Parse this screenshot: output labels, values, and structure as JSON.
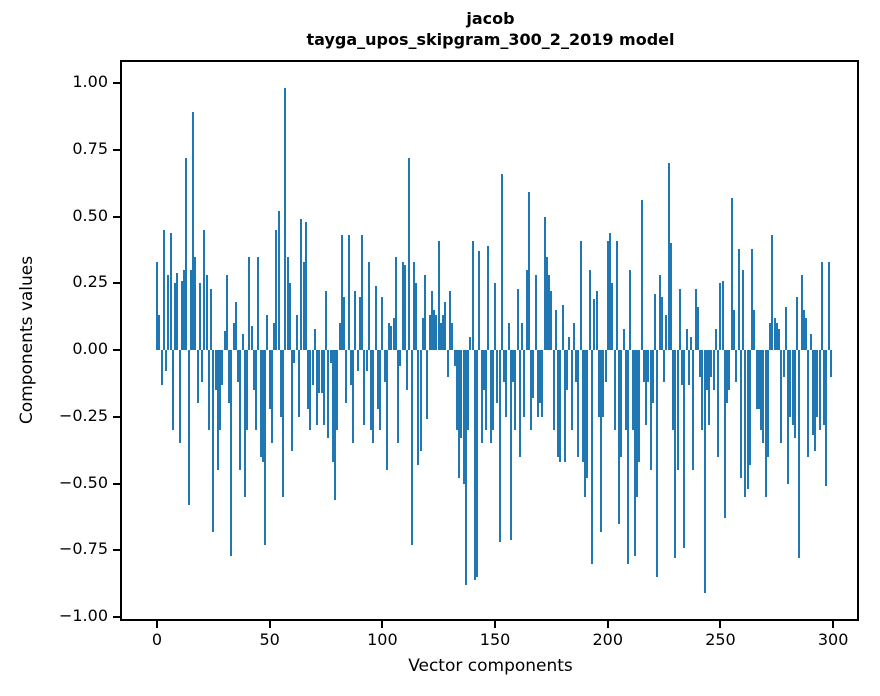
{
  "figure": {
    "title_line1": "jacob",
    "title_line2": "tayga_upos_skipgram_300_2_2019 model",
    "background": "#ffffff"
  },
  "chart_data": {
    "type": "bar",
    "title": "jacob — tayga_upos_skipgram_300_2_2019 model",
    "xlabel": "Vector components",
    "ylabel": "Components values",
    "bar_color": "#1f77b4",
    "axis_color": "#000000",
    "grid": false,
    "legend_position": "none",
    "xlim": [
      -15.5,
      311
    ],
    "ylim": [
      -1.0,
      1.08
    ],
    "x_ticks": [
      0,
      50,
      100,
      150,
      200,
      250,
      300
    ],
    "y_ticks": [
      1.0,
      0.75,
      0.5,
      0.25,
      0.0,
      -0.25,
      -0.5,
      -0.75,
      -1.0
    ],
    "y_tick_labels": [
      "1.00",
      "0.75",
      "0.50",
      "0.25",
      "0.00",
      "−0.25",
      "−0.50",
      "−0.75",
      "−1.00"
    ],
    "n_components": 300,
    "values": [
      0.33,
      0.13,
      -0.13,
      0.45,
      -0.08,
      0.28,
      0.44,
      -0.3,
      0.25,
      0.29,
      -0.35,
      0.26,
      0.3,
      0.72,
      -0.58,
      0.3,
      0.89,
      0.35,
      -0.2,
      0.25,
      -0.12,
      0.45,
      0.28,
      -0.3,
      0.23,
      -0.68,
      -0.15,
      -0.45,
      -0.3,
      -0.13,
      0.07,
      0.28,
      -0.2,
      -0.77,
      0.1,
      0.18,
      -0.12,
      -0.45,
      0.06,
      -0.55,
      -0.3,
      0.35,
      0.09,
      -0.15,
      -0.3,
      0.35,
      -0.4,
      -0.42,
      -0.73,
      0.13,
      -0.22,
      -0.35,
      0.1,
      0.45,
      0.52,
      -0.25,
      -0.55,
      0.98,
      0.35,
      0.25,
      -0.38,
      -0.05,
      0.13,
      -0.25,
      0.49,
      0.33,
      0.48,
      -0.22,
      -0.3,
      -0.13,
      0.08,
      -0.28,
      -0.16,
      -0.16,
      -0.28,
      0.22,
      -0.33,
      -0.05,
      -0.42,
      -0.56,
      -0.3,
      0.1,
      0.43,
      0.2,
      -0.2,
      0.43,
      -0.13,
      -0.35,
      0.22,
      -0.08,
      0.2,
      0.43,
      -0.28,
      -0.08,
      0.33,
      -0.3,
      -0.35,
      0.24,
      -0.22,
      -0.3,
      0.2,
      -0.12,
      -0.45,
      0.1,
      0.09,
      0.12,
      0.35,
      -0.35,
      -0.06,
      0.33,
      0.32,
      -0.15,
      0.72,
      -0.73,
      0.33,
      0.25,
      -0.43,
      -0.38,
      0.12,
      0.28,
      -0.26,
      0.13,
      0.22,
      0.15,
      0.13,
      0.41,
      0.1,
      0.13,
      0.18,
      -0.1,
      0.22,
      0.1,
      -0.06,
      -0.3,
      -0.48,
      -0.33,
      -0.5,
      -0.88,
      -0.3,
      0.05,
      0.41,
      -0.86,
      -0.85,
      0.37,
      -0.35,
      -0.15,
      -0.3,
      0.39,
      -0.35,
      -0.3,
      0.25,
      -0.2,
      -0.72,
      0.66,
      -0.12,
      -0.25,
      0.1,
      -0.71,
      -0.12,
      -0.3,
      0.23,
      -0.4,
      0.1,
      -0.25,
      0.3,
      0.59,
      -0.3,
      -0.18,
      0.28,
      -0.25,
      -0.2,
      -0.25,
      0.5,
      0.35,
      0.28,
      0.22,
      -0.3,
      0.15,
      -0.4,
      -0.42,
      0.17,
      -0.42,
      -0.15,
      0.05,
      -0.3,
      0.1,
      -0.12,
      -0.4,
      0.41,
      -0.42,
      -0.55,
      -0.48,
      0.3,
      -0.8,
      0.19,
      0.22,
      -0.25,
      -0.68,
      -0.25,
      -0.12,
      0.41,
      0.44,
      0.25,
      -0.3,
      0.41,
      -0.65,
      -0.4,
      0.08,
      -0.3,
      -0.8,
      0.3,
      -0.3,
      -0.77,
      -0.55,
      -0.42,
      0.56,
      -0.12,
      -0.28,
      -0.12,
      -0.45,
      -0.2,
      0.21,
      -0.85,
      0.28,
      0.2,
      -0.12,
      0.13,
      0.7,
      0.4,
      -0.3,
      -0.78,
      -0.45,
      0.23,
      -0.13,
      -0.74,
      0.08,
      -0.13,
      0.05,
      -0.45,
      0.23,
      0.16,
      -0.1,
      -0.3,
      -0.91,
      -0.15,
      -0.28,
      -0.1,
      -0.15,
      0.08,
      -0.4,
      0.25,
      0.26,
      -0.63,
      -0.2,
      -0.15,
      0.57,
      0.15,
      -0.12,
      0.38,
      -0.48,
      0.3,
      -0.55,
      -0.52,
      -0.43,
      0.38,
      0.15,
      -0.22,
      -0.22,
      -0.3,
      -0.35,
      -0.55,
      -0.4,
      0.1,
      0.43,
      0.12,
      0.1,
      0.08,
      -0.35,
      -0.1,
      0.16,
      -0.5,
      -0.25,
      -0.28,
      -0.33,
      0.2,
      -0.78,
      0.28,
      0.15,
      0.12,
      -0.4,
      0.06,
      -0.32,
      -0.38,
      -0.25,
      -0.3,
      0.33,
      -0.28,
      -0.51,
      0.33,
      -0.1
    ]
  }
}
